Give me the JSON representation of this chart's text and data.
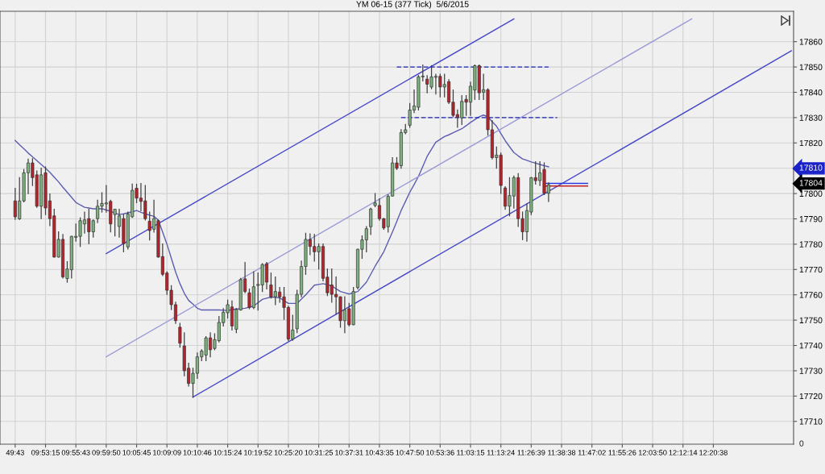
{
  "chart_data": {
    "type": "candlestick",
    "title": "YM 06-15 (377 Tick)  5/6/2015",
    "categories": [
      null,
      null,
      null,
      "49:43",
      null,
      null,
      null,
      null,
      null,
      null,
      "09:53:15",
      null,
      null,
      null,
      null,
      null,
      null,
      "09:55:43",
      null,
      null,
      null,
      null,
      null,
      null,
      "09:59:50",
      null,
      null,
      null,
      null,
      null,
      null,
      "10:05:45",
      null,
      null,
      null,
      null,
      null,
      null,
      "10:09:09",
      null,
      null,
      null,
      null,
      null,
      null,
      "10:10:46",
      null,
      null,
      null,
      null,
      null,
      null,
      "10:15:24",
      null,
      null,
      null,
      null,
      null,
      null,
      "10:19:52",
      null,
      null,
      null,
      null,
      null,
      null,
      "10:25:20",
      null,
      null,
      null,
      null,
      null,
      null,
      "10:31:25",
      null,
      null,
      null,
      null,
      null,
      null,
      "10:37:31",
      null,
      null,
      null,
      null,
      null,
      null,
      "10:43:35",
      null,
      null,
      null,
      null,
      null,
      null,
      "10:47:50",
      null,
      null,
      null,
      null,
      null,
      null,
      "10:53:36",
      null,
      null,
      null,
      null,
      null,
      null,
      "11:03:15",
      null,
      null,
      null,
      null,
      null,
      null,
      "11:13:24",
      null,
      null,
      null,
      null,
      null,
      null,
      "11:26:39",
      null,
      null,
      null,
      null,
      null,
      null,
      "11:38:38",
      null,
      null,
      null,
      null,
      null,
      null,
      "11:47:02",
      null,
      null,
      null,
      null,
      null,
      null,
      "11:55:26",
      null,
      null,
      null,
      null,
      null,
      null,
      "12:03:50",
      null,
      null,
      null,
      null,
      null,
      null,
      "12:12:14",
      null,
      null,
      null,
      null,
      null,
      null,
      "12:20:38",
      null,
      null,
      null,
      null,
      null,
      null,
      null,
      null,
      null,
      null,
      null,
      null,
      null,
      null,
      null,
      null,
      null,
      null
    ],
    "ohlc": [
      null,
      null,
      null,
      [
        17797.1,
        17802.1,
        17789.8,
        17790.8
      ],
      [
        17790.0,
        17806.3,
        17789.8,
        17797.1
      ],
      [
        17797.1,
        17809.5,
        17796.7,
        17808.2
      ],
      [
        17808.2,
        17813.6,
        17800.0,
        17812.1
      ],
      [
        17812.1,
        17813.8,
        17803.2,
        17806.3
      ],
      [
        17807.4,
        17808.9,
        17794.6,
        17795.0
      ],
      [
        17795.0,
        17810.0,
        17790.1,
        17807.4
      ],
      [
        17808.2,
        17810.5,
        17791.7,
        17794.3
      ],
      [
        17797.1,
        17799.8,
        17787.3,
        17790.1
      ],
      [
        17791.2,
        17793.8,
        17774.9,
        17774.9
      ],
      [
        17774.9,
        17784.9,
        17774.9,
        17781.9
      ],
      [
        17781.9,
        17783.8,
        17766.6,
        17767.1
      ],
      [
        17766.4,
        17773.1,
        17765.0,
        17770.2
      ],
      [
        17769.9,
        17783.1,
        17766.6,
        17783.1
      ],
      [
        17782.7,
        17788.0,
        17781.2,
        17783.1
      ],
      [
        17783.1,
        17790.4,
        17779.1,
        17789.3
      ],
      [
        17788.0,
        17792.7,
        17784.4,
        17789.6
      ],
      [
        17790.1,
        17793.8,
        17780.2,
        17784.9
      ],
      [
        17784.9,
        17789.6,
        17782.8,
        17789.3
      ],
      [
        17790.1,
        17797.4,
        17788.5,
        17795.0
      ],
      [
        17795.0,
        17800.3,
        17792.7,
        17796.1
      ],
      [
        17795.9,
        17803.2,
        17792.7,
        17796.3
      ],
      [
        17796.9,
        17797.4,
        17784.9,
        17788.0
      ],
      [
        17791.7,
        17793.8,
        17783.3,
        17793.8
      ],
      [
        17787.0,
        17793.8,
        17782.8,
        17791.2
      ],
      [
        17790.1,
        17791.7,
        17777.0,
        17780.2
      ],
      [
        17778.9,
        17792.7,
        17778.1,
        17791.9
      ],
      [
        17790.8,
        17803.7,
        17790.6,
        17801.3
      ],
      [
        17802.1,
        17803.7,
        17796.4,
        17798.2
      ],
      [
        17798.2,
        17804.0,
        17793.2,
        17796.9
      ],
      [
        17797.1,
        17803.2,
        17789.6,
        17790.1
      ],
      [
        17789.1,
        17792.7,
        17781.7,
        17785.4
      ],
      [
        17785.9,
        17797.4,
        17784.8,
        17790.1
      ],
      [
        17789.3,
        17789.5,
        17774.9,
        17774.9
      ],
      [
        17775.1,
        17780.1,
        17767.6,
        17768.1
      ],
      [
        17768.6,
        17769.1,
        17760.2,
        17761.8
      ],
      [
        17761.8,
        17763.6,
        17754.2,
        17756.1
      ],
      [
        17756.1,
        17757.1,
        17748.7,
        17749.8
      ],
      [
        17747.2,
        17748.7,
        17739.3,
        17740.9
      ],
      [
        17739.8,
        17745.0,
        17728.0,
        17730.0
      ],
      [
        17731.0,
        17733.0,
        17724.0,
        17725.0
      ],
      [
        17725.0,
        17731.0,
        17719.5,
        17729.0
      ],
      [
        17729.0,
        17737.0,
        17727.0,
        17735.5
      ],
      [
        17735.5,
        17738.3,
        17734.0,
        17737.8
      ],
      [
        17736.2,
        17743.5,
        17734.0,
        17743.0
      ],
      [
        17743.0,
        17745.0,
        17735.5,
        17738.3
      ],
      [
        17738.8,
        17744.6,
        17738.3,
        17742.3
      ],
      [
        17741.9,
        17751.4,
        17741.4,
        17749.1
      ],
      [
        17749.0,
        17754.5,
        17747.7,
        17753.1
      ],
      [
        17752.9,
        17757.9,
        17750.8,
        17756.1
      ],
      [
        17755.2,
        17757.6,
        17746.1,
        17747.7
      ],
      [
        17746.4,
        17754.5,
        17745.1,
        17754.2
      ],
      [
        17754.0,
        17766.5,
        17754.0,
        17766.0
      ],
      [
        17766.3,
        17772.8,
        17760.8,
        17761.3
      ],
      [
        17760.8,
        17762.3,
        17754.5,
        17755.0
      ],
      [
        17755.0,
        17769.1,
        17754.5,
        17763.2
      ],
      [
        17763.7,
        17768.6,
        17754.0,
        17764.1
      ],
      [
        17763.9,
        17772.3,
        17761.3,
        17772.0
      ],
      [
        17772.3,
        17772.8,
        17762.3,
        17765.0
      ],
      [
        17763.9,
        17768.6,
        17758.7,
        17759.2
      ],
      [
        17759.2,
        17767.0,
        17756.1,
        17761.3
      ],
      [
        17761.1,
        17762.9,
        17757.1,
        17759.2
      ],
      [
        17759.2,
        17762.9,
        17750.3,
        17755.0
      ],
      [
        17755.0,
        17755.5,
        17741.9,
        17742.5
      ],
      [
        17742.5,
        17751.9,
        17742.0,
        17746.1
      ],
      [
        17746.6,
        17761.8,
        17745.1,
        17760.2
      ],
      [
        17760.2,
        17773.3,
        17759.2,
        17771.2
      ],
      [
        17771.2,
        17784.3,
        17768.1,
        17781.9
      ],
      [
        17781.9,
        17784.1,
        17775.9,
        17779.1
      ],
      [
        17779.1,
        17783.8,
        17773.3,
        17777.0
      ],
      [
        17777.0,
        17780.1,
        17770.2,
        17779.1
      ],
      [
        17779.1,
        17780.1,
        17765.5,
        17766.5
      ],
      [
        17767.0,
        17770.2,
        17759.7,
        17760.8
      ],
      [
        17763.9,
        17770.2,
        17757.1,
        17760.2
      ],
      [
        17760.2,
        17767.0,
        17752.4,
        17759.2
      ],
      [
        17759.2,
        17759.2,
        17747.2,
        17749.8
      ],
      [
        17749.8,
        17759.2,
        17745.1,
        17754.0
      ],
      [
        17754.5,
        17756.6,
        17747.7,
        17748.2
      ],
      [
        17748.2,
        17762.9,
        17748.2,
        17761.3
      ],
      [
        17762.9,
        17778.0,
        17762.3,
        17778.0
      ],
      [
        17778.0,
        17783.3,
        17774.4,
        17781.7
      ],
      [
        17781.7,
        17786.9,
        17777.0,
        17786.1
      ],
      [
        17786.9,
        17794.2,
        17783.8,
        17793.9
      ],
      [
        17795.3,
        17800.0,
        17794.8,
        17796.3
      ],
      [
        17795.3,
        17797.9,
        17789.5,
        17790.1
      ],
      [
        17790.1,
        17790.1,
        17785.9,
        17786.4
      ],
      [
        17786.9,
        17799.5,
        17784.8,
        17798.9
      ],
      [
        17799.0,
        17814.2,
        17799.0,
        17812.1
      ],
      [
        17812.1,
        17814.2,
        17809.5,
        17810.0
      ],
      [
        17811.0,
        17825.2,
        17810.0,
        17824.1
      ],
      [
        17824.1,
        17827.3,
        17823.6,
        17825.2
      ],
      [
        17827.0,
        17835.6,
        17826.2,
        17833.0
      ],
      [
        17833.0,
        17840.9,
        17832.0,
        17834.6
      ],
      [
        17834.1,
        17846.6,
        17833.0,
        17846.1
      ],
      [
        17846.1,
        17850.8,
        17844.5,
        17846.4
      ],
      [
        17845.2,
        17846.6,
        17839.8,
        17843.2
      ],
      [
        17842.1,
        17850.5,
        17841.4,
        17846.1
      ],
      [
        17845.9,
        17847.1,
        17839.3,
        17846.3
      ],
      [
        17846.3,
        17847.1,
        17838.2,
        17842.1
      ],
      [
        17842.1,
        17847.1,
        17838.2,
        17843.1
      ],
      [
        17844.2,
        17845.0,
        17835.6,
        17836.1
      ],
      [
        17836.1,
        17840.9,
        17830.4,
        17830.9
      ],
      [
        17831.2,
        17833.0,
        17826.2,
        17830.2
      ],
      [
        17829.9,
        17838.7,
        17827.3,
        17836.4
      ],
      [
        17837.2,
        17838.7,
        17830.9,
        17836.1
      ],
      [
        17836.1,
        17844.0,
        17830.9,
        17842.4
      ],
      [
        17840.9,
        17850.8,
        17837.2,
        17850.5
      ],
      [
        17850.5,
        17850.8,
        17837.2,
        17839.8
      ],
      [
        17840.0,
        17847.1,
        17837.2,
        17841.0
      ],
      [
        17841.0,
        17841.4,
        17823.1,
        17825.2
      ],
      [
        17825.2,
        17828.8,
        17813.7,
        17814.2
      ],
      [
        17814.2,
        17818.4,
        17810.0,
        17815.2
      ],
      [
        17815.2,
        17816.0,
        17800.1,
        17803.2
      ],
      [
        17802.2,
        17802.7,
        17793.8,
        17795.0
      ],
      [
        17795.0,
        17806.3,
        17791.2,
        17799.2
      ],
      [
        17799.0,
        17806.9,
        17794.3,
        17806.3
      ],
      [
        17806.3,
        17807.9,
        17787.0,
        17790.1
      ],
      [
        17790.1,
        17792.7,
        17781.8,
        17784.9
      ],
      [
        17784.9,
        17795.9,
        17781.2,
        17793.3
      ],
      [
        17792.7,
        17806.3,
        17791.7,
        17806.3
      ],
      [
        17806.3,
        17812.6,
        17803.7,
        17805.1
      ],
      [
        17805.1,
        17812.6,
        17803.2,
        17808.2
      ],
      [
        17809.5,
        17812.1,
        17799.6,
        17800.1
      ],
      [
        17800.1,
        17804.2,
        17796.9,
        17803.4
      ],
      null,
      null,
      null,
      null,
      null,
      null,
      null,
      null,
      null,
      null,
      null,
      null,
      null,
      null,
      null,
      null,
      null,
      null,
      null,
      null,
      null,
      null,
      null,
      null,
      null,
      null,
      null,
      null,
      null,
      null,
      null,
      null,
      null,
      null,
      null,
      null,
      null,
      null,
      null,
      null,
      null,
      null,
      null,
      null,
      null,
      null,
      null,
      null,
      null,
      null,
      null,
      null,
      null,
      null,
      null,
      null
    ],
    "series": [
      {
        "type": "line",
        "color": "#5c5cb0",
        "line_style": "solid",
        "values": [
          null,
          null,
          null,
          17821,
          17819.3,
          17817.7,
          17816,
          17814.5,
          17813,
          17811.5,
          17810,
          17808.4,
          17806.5,
          17804.6,
          17802.5,
          17800.5,
          17798.5,
          17796.5,
          17795.5,
          17794.6,
          17794.3,
          17794,
          17794,
          17794,
          17793.5,
          17793,
          17792.3,
          17791.7,
          17792,
          17792.4,
          17792.8,
          17793.3,
          17792.6,
          17792,
          17791.5,
          17791,
          17789.5,
          17784.8,
          17780,
          17774.5,
          17769,
          17764.4,
          17760.6,
          17757.8,
          17756.3,
          17754.7,
          17754,
          17754,
          17754,
          17754,
          17754,
          17753.9,
          17753.8,
          17754.1,
          17754.4,
          17754.5,
          17754.7,
          17755.1,
          17755.6,
          17756.9,
          17758.2,
          17758.7,
          17759.1,
          17759,
          17758.8,
          17757.7,
          17756.6,
          17756.6,
          17756.6,
          17758.3,
          17760,
          17761.9,
          17763.8,
          17764.1,
          17764.4,
          17764,
          17763.5,
          17762.4,
          17761.3,
          17760.8,
          17760.3,
          17760.8,
          17761.3,
          17763.1,
          17765,
          17768.1,
          17771.3,
          17774.1,
          17777,
          17780.9,
          17784.8,
          17789,
          17793.3,
          17796.9,
          17800.5,
          17803.6,
          17806.8,
          17810.7,
          17814.7,
          17817.5,
          17820.3,
          17821.4,
          17822.5,
          17823.2,
          17824,
          17824.8,
          17825.6,
          17826.8,
          17828.1,
          17829.2,
          17830.3,
          17831,
          17830.3,
          17828.4,
          17826.6,
          17823.7,
          17820.9,
          17818.5,
          17816.2,
          17814.9,
          17813.7,
          17813.1,
          17812.5,
          17812,
          17811.5,
          17811,
          17810.6,
          null,
          null,
          null,
          null,
          null,
          null,
          null,
          null,
          null,
          null,
          null,
          null,
          null,
          null,
          null,
          null,
          null,
          null,
          null,
          null,
          null,
          null,
          null,
          null,
          null,
          null,
          null,
          null,
          null,
          null,
          null,
          null,
          null,
          null,
          null,
          null,
          null,
          null,
          null,
          null,
          null,
          null,
          null,
          null,
          null,
          null,
          null,
          null,
          null,
          null,
          null,
          null,
          null,
          null,
          null,
          null
        ]
      },
      {
        "type": "line",
        "color": "#4646c8",
        "line_style": "solid",
        "values": [
          null,
          null,
          null,
          null,
          null,
          null,
          null,
          null,
          null,
          null,
          null,
          null,
          null,
          null,
          null,
          null,
          null,
          null,
          null,
          null,
          null,
          null,
          null,
          null,
          17776.3,
          null,
          null,
          null,
          null,
          null,
          null,
          null,
          null,
          null,
          null,
          null,
          null,
          null,
          null,
          null,
          null,
          null,
          null,
          null,
          null,
          null,
          null,
          null,
          null,
          null,
          null,
          null,
          null,
          null,
          null,
          null,
          null,
          null,
          null,
          null,
          null,
          null,
          null,
          null,
          null,
          null,
          null,
          null,
          null,
          null,
          null,
          null,
          null,
          null,
          null,
          null,
          null,
          null,
          null,
          null,
          null,
          null,
          null,
          null,
          null,
          null,
          null,
          null,
          null,
          null,
          null,
          null,
          null,
          null,
          null,
          null,
          null,
          null,
          null,
          null,
          null,
          null,
          null,
          null,
          null,
          null,
          null,
          null,
          null,
          null,
          null,
          null,
          null,
          null,
          null,
          null,
          null,
          null,
          17869,
          null,
          null,
          null,
          null,
          null,
          null,
          null,
          null,
          null,
          null,
          null,
          null,
          null,
          null,
          null,
          null,
          null,
          null,
          null,
          null,
          null,
          null,
          null,
          null,
          null,
          null,
          null,
          null,
          null,
          null,
          null,
          null,
          null,
          null,
          null,
          null,
          null,
          null,
          null,
          null,
          null,
          null,
          null,
          null,
          null,
          null,
          null,
          null,
          null,
          null,
          null,
          null,
          null,
          null,
          null,
          null,
          null,
          null,
          null,
          null,
          null,
          null,
          null,
          null
        ]
      },
      {
        "type": "line",
        "color": "#9a9ad6",
        "line_style": "solid",
        "values": [
          null,
          null,
          null,
          null,
          null,
          null,
          null,
          null,
          null,
          null,
          null,
          null,
          null,
          null,
          null,
          null,
          null,
          null,
          null,
          null,
          null,
          null,
          null,
          null,
          17735.5,
          null,
          null,
          null,
          null,
          null,
          null,
          null,
          null,
          null,
          null,
          null,
          null,
          null,
          null,
          null,
          null,
          null,
          null,
          null,
          null,
          null,
          null,
          null,
          null,
          null,
          null,
          null,
          null,
          null,
          null,
          null,
          null,
          null,
          null,
          null,
          null,
          null,
          null,
          null,
          null,
          null,
          null,
          null,
          null,
          null,
          null,
          null,
          null,
          null,
          null,
          null,
          null,
          null,
          null,
          null,
          null,
          null,
          null,
          null,
          null,
          null,
          null,
          null,
          null,
          null,
          null,
          null,
          null,
          null,
          null,
          null,
          null,
          null,
          null,
          null,
          null,
          null,
          null,
          null,
          null,
          null,
          null,
          null,
          null,
          null,
          null,
          null,
          null,
          null,
          null,
          null,
          null,
          null,
          null,
          null,
          null,
          null,
          null,
          null,
          null,
          null,
          null,
          null,
          null,
          null,
          null,
          null,
          null,
          null,
          null,
          null,
          null,
          null,
          null,
          null,
          null,
          null,
          null,
          null,
          null,
          null,
          null,
          null,
          null,
          null,
          null,
          null,
          null,
          null,
          null,
          null,
          null,
          null,
          null,
          17869,
          null,
          null,
          null,
          null,
          null,
          null,
          null,
          null,
          null,
          null,
          null,
          null,
          null,
          null,
          null,
          null,
          null,
          null,
          null,
          null,
          null,
          null,
          null
        ]
      },
      {
        "type": "line",
        "color": "#4646c8",
        "line_style": "solid",
        "values": [
          null,
          null,
          null,
          null,
          null,
          null,
          null,
          null,
          null,
          null,
          null,
          null,
          null,
          null,
          null,
          null,
          null,
          null,
          null,
          null,
          null,
          null,
          null,
          null,
          null,
          null,
          null,
          null,
          null,
          null,
          null,
          null,
          null,
          null,
          null,
          null,
          null,
          null,
          null,
          null,
          null,
          null,
          null,
          null,
          17719.6,
          null,
          null,
          null,
          null,
          null,
          null,
          null,
          null,
          null,
          null,
          null,
          null,
          null,
          null,
          null,
          null,
          null,
          null,
          null,
          null,
          null,
          null,
          null,
          null,
          null,
          null,
          null,
          null,
          null,
          null,
          null,
          null,
          null,
          null,
          null,
          null,
          null,
          null,
          null,
          null,
          null,
          null,
          null,
          null,
          null,
          null,
          null,
          null,
          null,
          null,
          null,
          null,
          null,
          null,
          null,
          null,
          null,
          null,
          null,
          null,
          null,
          null,
          null,
          null,
          null,
          null,
          null,
          null,
          null,
          null,
          null,
          null,
          null,
          null,
          null,
          null,
          null,
          null,
          null,
          null,
          null,
          null,
          null,
          null,
          null,
          null,
          null,
          null,
          null,
          null,
          null,
          null,
          null,
          null,
          null,
          null,
          null,
          null,
          null,
          null,
          null,
          null,
          null,
          null,
          null,
          null,
          null,
          null,
          null,
          null,
          null,
          null,
          null,
          null,
          null,
          null,
          null,
          null,
          null,
          null,
          null,
          null,
          null,
          null,
          null,
          null,
          null,
          null,
          null,
          null,
          null,
          null,
          null,
          null,
          null,
          null,
          null,
          17856.4
        ]
      },
      {
        "type": "line",
        "color": "#1c24b4",
        "line_style": "dashed",
        "values": [
          null,
          null,
          null,
          null,
          null,
          null,
          null,
          null,
          null,
          null,
          null,
          null,
          null,
          null,
          null,
          null,
          null,
          null,
          null,
          null,
          null,
          null,
          null,
          null,
          null,
          null,
          null,
          null,
          null,
          null,
          null,
          null,
          null,
          null,
          null,
          null,
          null,
          null,
          null,
          null,
          null,
          null,
          null,
          null,
          null,
          null,
          null,
          null,
          null,
          null,
          null,
          null,
          null,
          null,
          null,
          null,
          null,
          null,
          null,
          null,
          null,
          null,
          null,
          null,
          null,
          null,
          null,
          null,
          null,
          null,
          null,
          null,
          null,
          null,
          null,
          null,
          null,
          null,
          null,
          null,
          null,
          null,
          null,
          null,
          null,
          null,
          null,
          null,
          null,
          null,
          null,
          17850,
          null,
          null,
          null,
          null,
          null,
          null,
          null,
          null,
          null,
          null,
          null,
          null,
          null,
          null,
          null,
          null,
          null,
          null,
          null,
          null,
          null,
          null,
          null,
          null,
          null,
          null,
          null,
          null,
          null,
          null,
          null,
          null,
          null,
          null,
          17850,
          null,
          null,
          null,
          null,
          null,
          null,
          null,
          null,
          null,
          null,
          null,
          null,
          null,
          null,
          null,
          null,
          null,
          null,
          null,
          null,
          null,
          null,
          null,
          null,
          null,
          null,
          null,
          null,
          null,
          null,
          null,
          null,
          null,
          null,
          null,
          null,
          null,
          null,
          null,
          null,
          null,
          null,
          null,
          null,
          null,
          null,
          null,
          null,
          null,
          null,
          null,
          null,
          null,
          null,
          null,
          null
        ]
      },
      {
        "type": "line",
        "color": "#1c24b4",
        "line_style": "dashed",
        "values": [
          null,
          null,
          null,
          null,
          null,
          null,
          null,
          null,
          null,
          null,
          null,
          null,
          null,
          null,
          null,
          null,
          null,
          null,
          null,
          null,
          null,
          null,
          null,
          null,
          null,
          null,
          null,
          null,
          null,
          null,
          null,
          null,
          null,
          null,
          null,
          null,
          null,
          null,
          null,
          null,
          null,
          null,
          null,
          null,
          null,
          null,
          null,
          null,
          null,
          null,
          null,
          null,
          null,
          null,
          null,
          null,
          null,
          null,
          null,
          null,
          null,
          null,
          null,
          null,
          null,
          null,
          null,
          null,
          null,
          null,
          null,
          null,
          null,
          null,
          null,
          null,
          null,
          null,
          null,
          null,
          null,
          null,
          null,
          null,
          null,
          null,
          null,
          null,
          null,
          null,
          null,
          null,
          17830,
          null,
          null,
          null,
          null,
          null,
          null,
          null,
          null,
          null,
          null,
          null,
          null,
          null,
          null,
          null,
          null,
          null,
          null,
          null,
          null,
          null,
          null,
          null,
          null,
          null,
          null,
          null,
          null,
          null,
          null,
          null,
          null,
          null,
          null,
          null,
          17830,
          null,
          null,
          null,
          null,
          null,
          null,
          null,
          null,
          null,
          null,
          null,
          null,
          null,
          null,
          null,
          null,
          null,
          null,
          null,
          null,
          null,
          null,
          null,
          null,
          null,
          null,
          null,
          null,
          null,
          null,
          null,
          null,
          null,
          null,
          null,
          null,
          null,
          null,
          null,
          null,
          null,
          null,
          null,
          null,
          null,
          null,
          null,
          null,
          null,
          null,
          null,
          null,
          null,
          null
        ]
      },
      {
        "type": "line",
        "color": "#2a3ae0",
        "line_style": "solid",
        "values": [
          null,
          null,
          null,
          null,
          null,
          null,
          null,
          null,
          null,
          null,
          null,
          null,
          null,
          null,
          null,
          null,
          null,
          null,
          null,
          null,
          null,
          null,
          null,
          null,
          null,
          null,
          null,
          null,
          null,
          null,
          null,
          null,
          null,
          null,
          null,
          null,
          null,
          null,
          null,
          null,
          null,
          null,
          null,
          null,
          null,
          null,
          null,
          null,
          null,
          null,
          null,
          null,
          null,
          null,
          null,
          null,
          null,
          null,
          null,
          null,
          null,
          null,
          null,
          null,
          null,
          null,
          null,
          null,
          null,
          null,
          null,
          null,
          null,
          null,
          null,
          null,
          null,
          null,
          null,
          null,
          null,
          null,
          null,
          null,
          null,
          null,
          null,
          null,
          null,
          null,
          null,
          null,
          null,
          null,
          null,
          null,
          null,
          null,
          null,
          null,
          null,
          null,
          null,
          null,
          null,
          null,
          null,
          null,
          null,
          null,
          null,
          null,
          null,
          null,
          null,
          null,
          null,
          null,
          null,
          null,
          null,
          null,
          null,
          null,
          null,
          17804,
          null,
          null,
          null,
          null,
          null,
          null,
          null,
          null,
          null,
          17804,
          null,
          null,
          null,
          null,
          null,
          null,
          null,
          null,
          null,
          null,
          null,
          null,
          null,
          null,
          null,
          null,
          null,
          null,
          null,
          null,
          null,
          null,
          null,
          null,
          null,
          null,
          null,
          null,
          null,
          null,
          null,
          null,
          null,
          null,
          null,
          null,
          null,
          null,
          null,
          null,
          null,
          null,
          null,
          null,
          null,
          null,
          null
        ]
      },
      {
        "type": "line",
        "color": "#c01e1e",
        "line_style": "solid",
        "values": [
          null,
          null,
          null,
          null,
          null,
          null,
          null,
          null,
          null,
          null,
          null,
          null,
          null,
          null,
          null,
          null,
          null,
          null,
          null,
          null,
          null,
          null,
          null,
          null,
          null,
          null,
          null,
          null,
          null,
          null,
          null,
          null,
          null,
          null,
          null,
          null,
          null,
          null,
          null,
          null,
          null,
          null,
          null,
          null,
          null,
          null,
          null,
          null,
          null,
          null,
          null,
          null,
          null,
          null,
          null,
          null,
          null,
          null,
          null,
          null,
          null,
          null,
          null,
          null,
          null,
          null,
          null,
          null,
          null,
          null,
          null,
          null,
          null,
          null,
          null,
          null,
          null,
          null,
          null,
          null,
          null,
          null,
          null,
          null,
          null,
          null,
          null,
          null,
          null,
          null,
          null,
          null,
          null,
          null,
          null,
          null,
          null,
          null,
          null,
          null,
          null,
          null,
          null,
          null,
          null,
          null,
          null,
          null,
          null,
          null,
          null,
          null,
          null,
          null,
          null,
          null,
          null,
          null,
          null,
          null,
          null,
          null,
          null,
          null,
          null,
          17803,
          null,
          null,
          null,
          null,
          null,
          null,
          null,
          null,
          null,
          17803,
          null,
          null,
          null,
          null,
          null,
          null,
          null,
          null,
          null,
          null,
          null,
          null,
          null,
          null,
          null,
          null,
          null,
          null,
          null,
          null,
          null,
          null,
          null,
          null,
          null,
          null,
          null,
          null,
          null,
          null,
          null,
          null,
          null,
          null,
          null,
          null,
          null,
          null,
          null,
          null,
          null,
          null,
          null,
          null,
          null,
          null,
          null
        ]
      }
    ],
    "ylim": [
      17701,
      17872
    ],
    "yticks": [
      17710,
      17720,
      17730,
      17740,
      17750,
      17760,
      17770,
      17780,
      17790,
      17800,
      {
        "value": 17810,
        "label": null
      },
      17820,
      17830,
      17840,
      17850,
      17860
    ],
    "grid": true,
    "annotations": [
      "17810",
      "17804",
      "0"
    ]
  }
}
